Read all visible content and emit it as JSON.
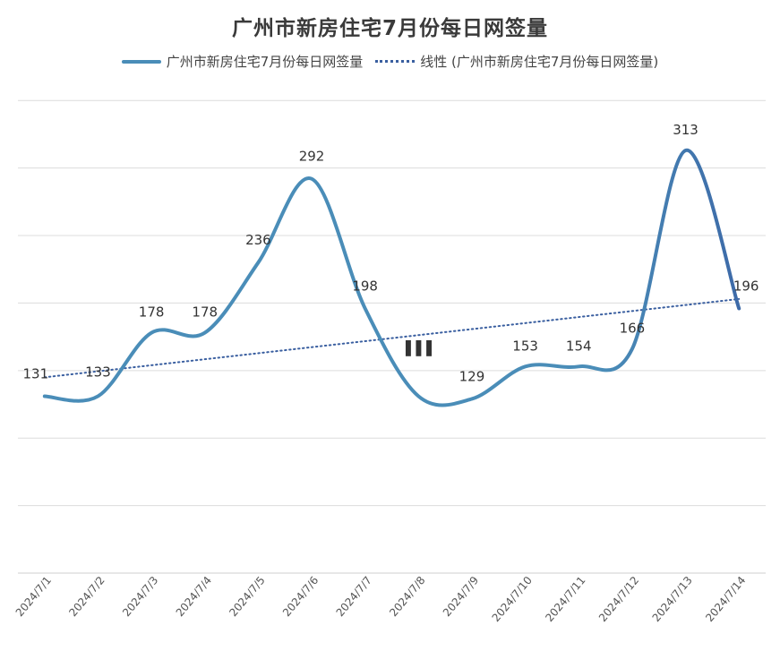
{
  "chart_data": {
    "type": "line",
    "title": "广州市新房住宅7月份每日网签量",
    "categories": [
      "2024/7/1",
      "2024/7/2",
      "2024/7/3",
      "2024/7/4",
      "2024/7/5",
      "2024/7/6",
      "2024/7/7",
      "2024/7/8",
      "2024/7/9",
      "2024/7/10",
      "2024/7/11",
      "2024/7/12",
      "2024/7/13",
      "2024/7/14"
    ],
    "series": [
      {
        "name": "广州市新房住宅7月份每日网签量",
        "values": [
          131,
          133,
          178,
          178,
          236,
          292,
          198,
          null,
          129,
          153,
          154,
          166,
          313,
          196
        ],
        "labels": [
          "131",
          "133",
          "178",
          "178",
          "236",
          "292",
          "198",
          "",
          "129",
          "153",
          "154",
          "166",
          "313",
          "196"
        ],
        "visual_values": [
          131,
          131,
          178,
          178,
          230,
          292,
          196,
          131,
          129,
          153,
          153,
          166,
          313,
          196
        ],
        "color": "#4a8db8",
        "color_end": "#3d6aa8"
      }
    ],
    "trendline": {
      "name": "线性 (广州市新房住宅7月份每日网签量)",
      "type": "linear",
      "start": 145,
      "end": 203,
      "color": "#3a5fa0"
    },
    "ylim": [
      0,
      380
    ],
    "grid": true,
    "legend_position": "top-center",
    "xlabel": "",
    "ylabel": ""
  },
  "obscured_label_glyph": "▌▌▌"
}
